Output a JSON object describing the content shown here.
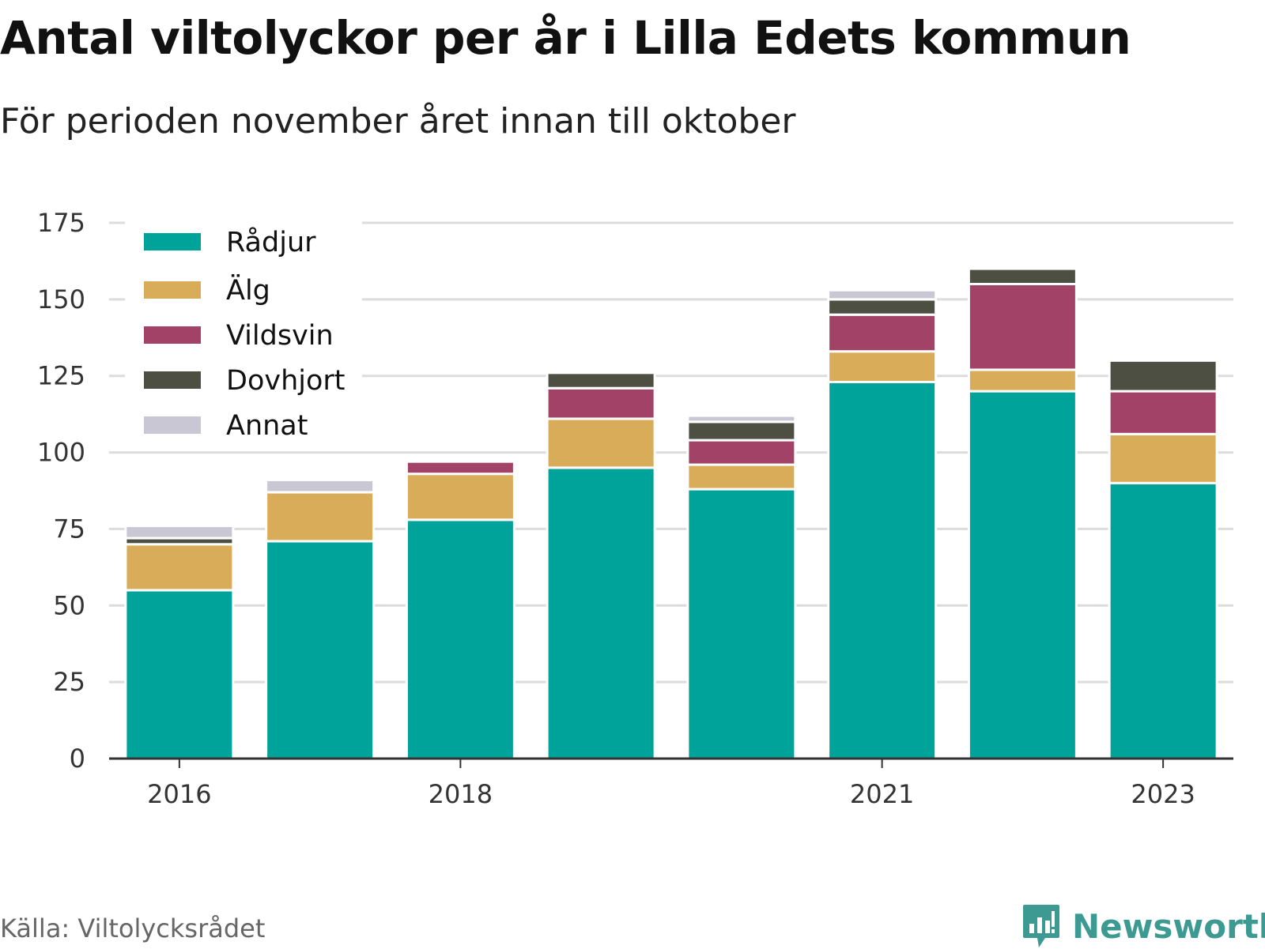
{
  "header": {
    "title": "Antal viltolyckor per år i Lilla Edets kommun",
    "subtitle": "För perioden november året innan till oktober"
  },
  "footer": {
    "source": "Källa: Viltolycksrådet",
    "brand": "Newsworthy"
  },
  "chart_data": {
    "type": "bar",
    "stacked": true,
    "categories": [
      "2016",
      "2017",
      "2018",
      "2019",
      "2020",
      "2021",
      "2022",
      "2023"
    ],
    "x_tick_labels": [
      "2016",
      "",
      "2018",
      "",
      "",
      "2021",
      "",
      "2023"
    ],
    "ylim": [
      0,
      175
    ],
    "y_ticks": [
      0,
      25,
      50,
      75,
      100,
      125,
      150,
      175
    ],
    "grid": true,
    "legend_position": "top-left",
    "series": [
      {
        "name": "Rådjur",
        "color": "#00a39a",
        "values": [
          55,
          71,
          78,
          95,
          88,
          123,
          120,
          90
        ]
      },
      {
        "name": "Älg",
        "color": "#d9ac5a",
        "values": [
          15,
          16,
          15,
          16,
          8,
          10,
          7,
          16
        ]
      },
      {
        "name": "Vildsvin",
        "color": "#a34267",
        "values": [
          0,
          0,
          4,
          10,
          8,
          12,
          28,
          14
        ]
      },
      {
        "name": "Dovhjort",
        "color": "#4d4f42",
        "values": [
          2,
          0,
          0,
          5,
          6,
          5,
          5,
          10
        ]
      },
      {
        "name": "Annat",
        "color": "#c8c7d3",
        "values": [
          4,
          4,
          0,
          0,
          2,
          3,
          0,
          0
        ]
      }
    ]
  }
}
